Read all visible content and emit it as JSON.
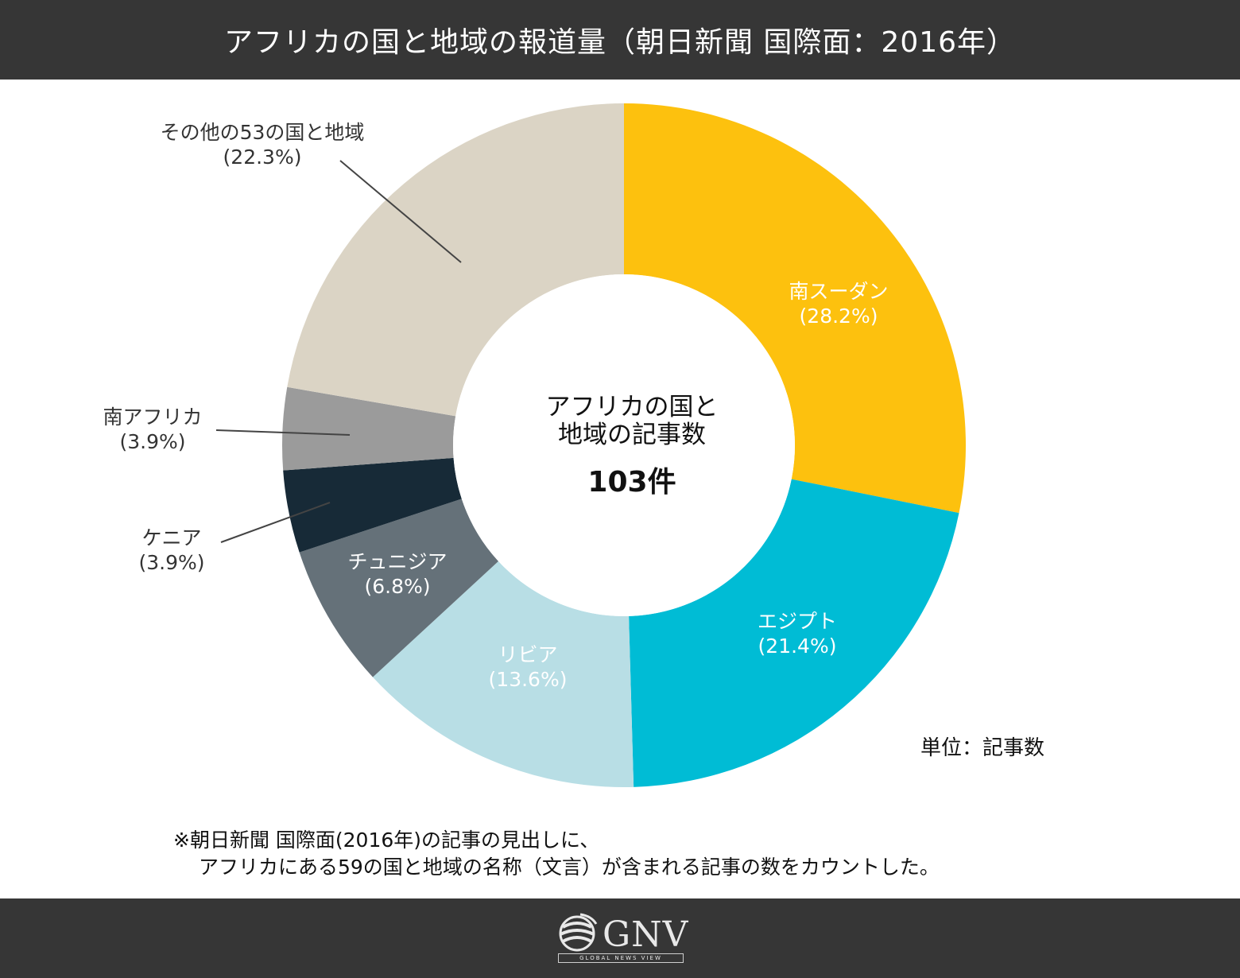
{
  "title": "アフリカの国と地域の報道量（朝日新聞 国際面：2016年）",
  "center": {
    "line1": "アフリカの国と",
    "line2": "地域の記事数",
    "total": "103件"
  },
  "unit": "単位：記事数",
  "note": {
    "line1": "※朝日新聞 国際面(2016年)の記事の見出しに、",
    "line2": "アフリカにある59の国と地域の名称（文言）が含まれる記事の数をカウントした。"
  },
  "logo": {
    "text": "GNV",
    "subtext": "GLOBAL NEWS VIEW"
  },
  "chart_data": {
    "type": "pie",
    "variant": "donut",
    "slices": [
      {
        "label": "南スーダン",
        "value_label": "(28.2%)",
        "percent": 28.2,
        "color": "#FDC10E",
        "text_color": "#ffffff"
      },
      {
        "label": "エジプト",
        "value_label": "(21.4%)",
        "percent": 21.4,
        "color": "#00BCD5",
        "text_color": "#ffffff"
      },
      {
        "label": "リビア",
        "value_label": "(13.6%)",
        "percent": 13.6,
        "color": "#B8DEE5",
        "text_color": "#ffffff"
      },
      {
        "label": "チュニジア",
        "value_label": "(6.8%)",
        "percent": 6.8,
        "color": "#657179",
        "text_color": "#ffffff"
      },
      {
        "label": "ケニア",
        "value_label": "(3.9%)",
        "percent": 3.9,
        "color": "#172A37",
        "text_color": "#333333"
      },
      {
        "label": "南アフリカ",
        "value_label": "(3.9%)",
        "percent": 3.9,
        "color": "#9B9B9B",
        "text_color": "#333333"
      },
      {
        "label": "その他の53の国と地域",
        "value_label": "(22.3%)",
        "percent": 22.3,
        "color": "#DBD4C5",
        "text_color": "#333333"
      }
    ]
  }
}
